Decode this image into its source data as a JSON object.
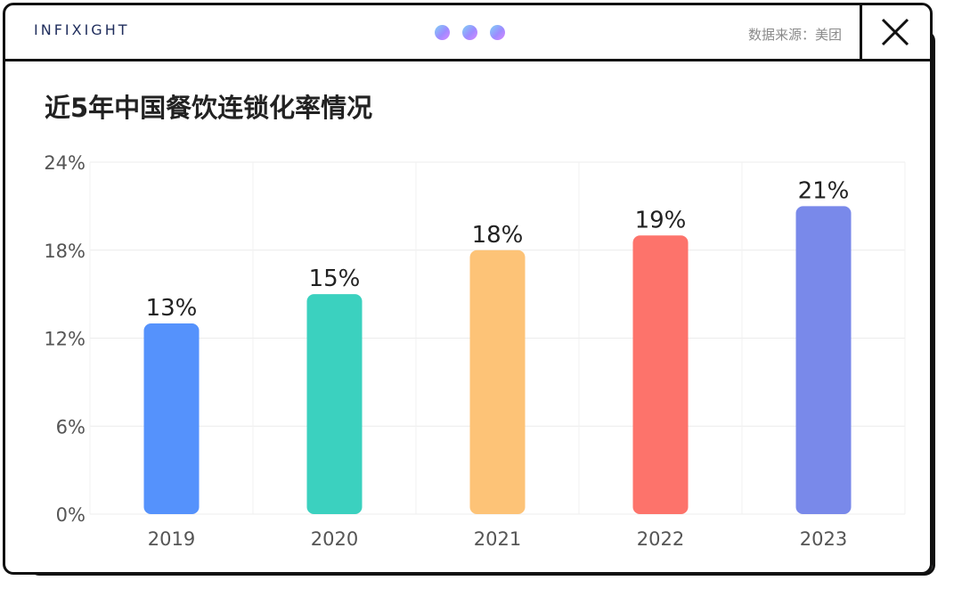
{
  "window": {
    "brand": "INFIXIGHT",
    "source": "数据来源：美团"
  },
  "chart_data": {
    "type": "bar",
    "title": "近5年中国餐饮连锁化率情况",
    "categories": [
      "2019",
      "2020",
      "2021",
      "2022",
      "2023"
    ],
    "values": [
      13,
      15,
      18,
      19,
      21
    ],
    "value_labels": [
      "13%",
      "15%",
      "18%",
      "19%",
      "21%"
    ],
    "colors": [
      "#5592fc",
      "#3bd1bf",
      "#fdc377",
      "#fd736b",
      "#7989ea"
    ],
    "ylim": [
      0,
      24
    ],
    "yticks": [
      0,
      6,
      12,
      18,
      24
    ],
    "ytick_labels": [
      "0%",
      "6%",
      "12%",
      "18%",
      "24%"
    ],
    "grid": true,
    "xlabel": "",
    "ylabel": ""
  }
}
